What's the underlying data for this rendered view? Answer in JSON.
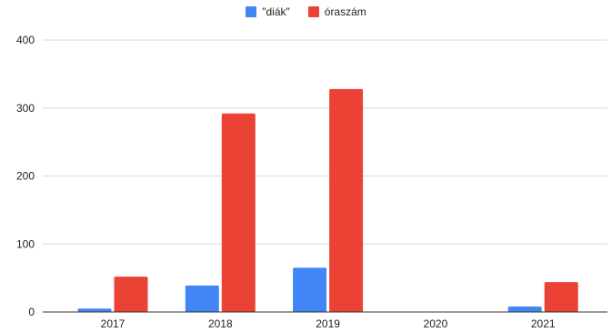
{
  "chart_data": {
    "type": "bar",
    "categories": [
      "2017",
      "2018",
      "2019",
      "2020",
      "2021"
    ],
    "series": [
      {
        "name": "\"diák\"",
        "color": "#4285f4",
        "values": [
          5,
          39,
          65,
          null,
          8
        ]
      },
      {
        "name": "óraszám",
        "color": "#ea4335",
        "values": [
          52,
          292,
          328,
          null,
          44
        ]
      }
    ],
    "ylim": [
      0,
      400
    ],
    "yticks": [
      "0",
      "100",
      "200",
      "300",
      "400"
    ],
    "grid": true,
    "legend_position": "top"
  }
}
